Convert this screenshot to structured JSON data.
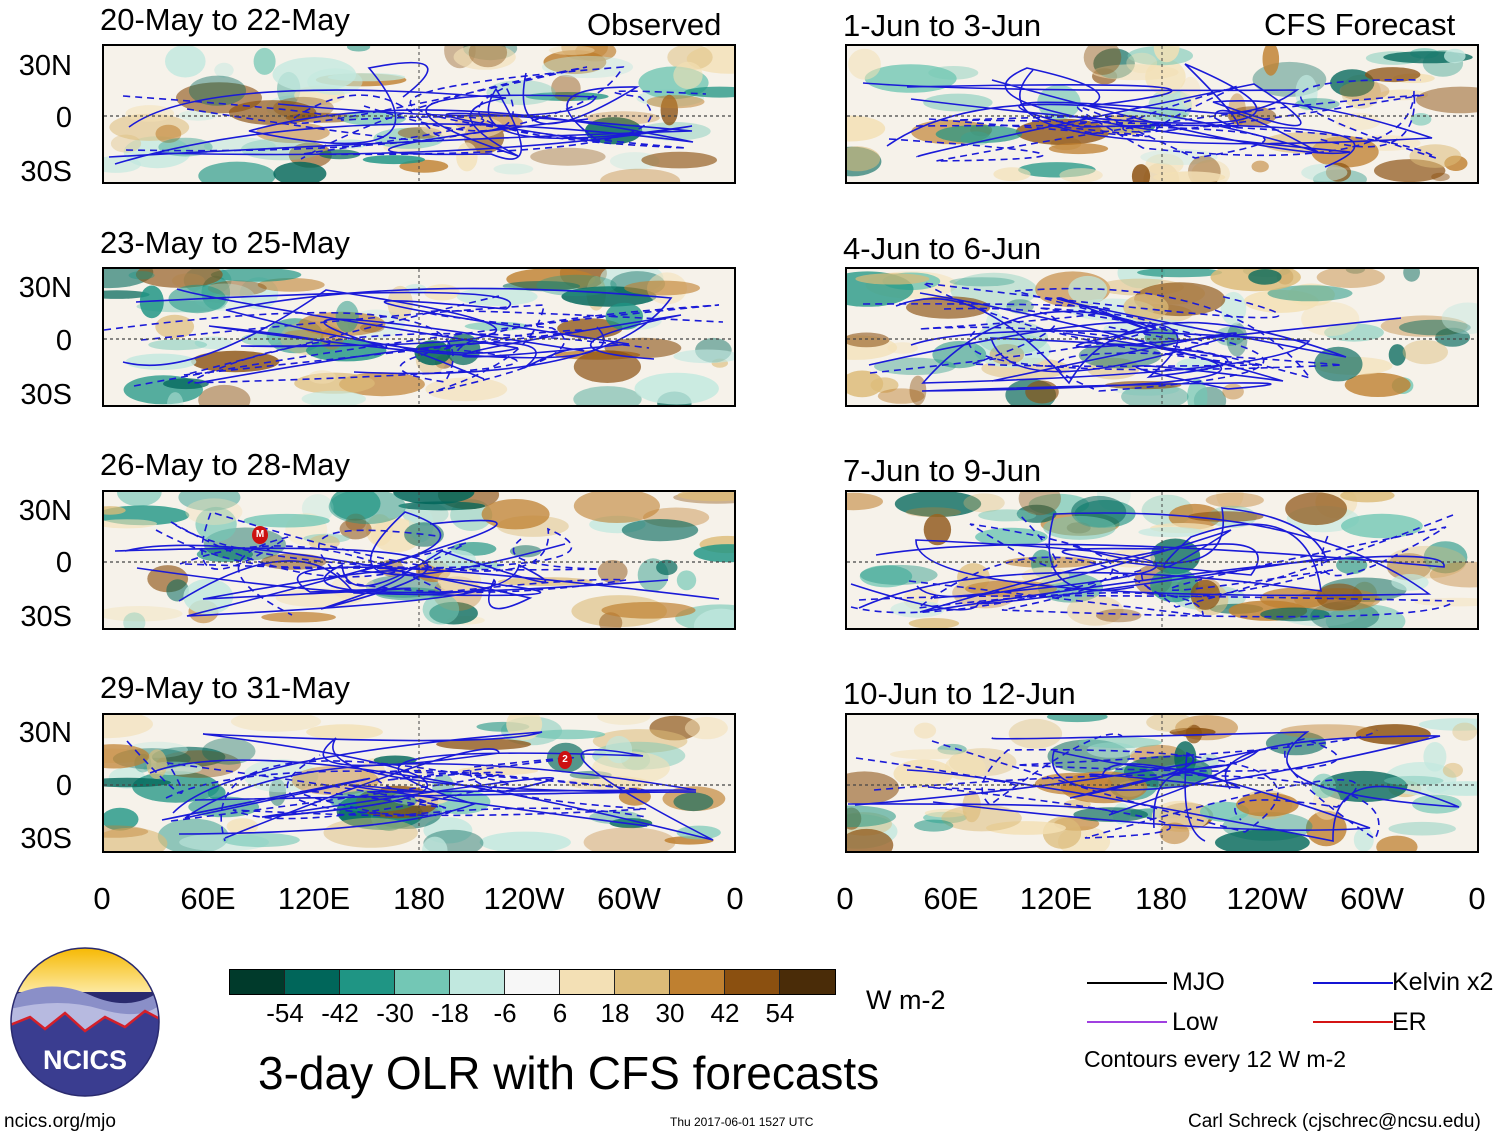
{
  "header": {
    "observed_label": "Observed",
    "forecast_label": "CFS Forecast"
  },
  "panels": {
    "observed": [
      {
        "title": "20-May to 22-May"
      },
      {
        "title": "23-May to 25-May"
      },
      {
        "title": "26-May to 28-May",
        "marker": "M"
      },
      {
        "title": "29-May to 31-May",
        "marker": "2"
      }
    ],
    "forecast": [
      {
        "title": "1-Jun to 3-Jun"
      },
      {
        "title": "4-Jun to 6-Jun"
      },
      {
        "title": "7-Jun to 9-Jun"
      },
      {
        "title": "10-Jun to 12-Jun"
      }
    ]
  },
  "axes": {
    "lat_labels": [
      "30N",
      "0",
      "30S"
    ],
    "lon_labels": [
      "0",
      "60E",
      "120E",
      "180",
      "120W",
      "60W",
      "0"
    ]
  },
  "colorbar": {
    "colors": [
      "#003a2b",
      "#00665a",
      "#1f9584",
      "#73c7b5",
      "#c1e8df",
      "#f7f7f7",
      "#f3e0b5",
      "#dcbb78",
      "#bf8030",
      "#8b5010",
      "#4a2c08"
    ],
    "ticks": [
      "-54",
      "-42",
      "-30",
      "-18",
      "-6",
      "6",
      "18",
      "30",
      "42",
      "54"
    ],
    "unit": "W m-2"
  },
  "title": "3-day OLR with CFS forecasts",
  "legend": {
    "items": [
      {
        "label": "MJO",
        "color": "#000000"
      },
      {
        "label": "Kelvin x2",
        "color": "#1414d4"
      },
      {
        "label": "Low",
        "color": "#a040e0"
      },
      {
        "label": "ER",
        "color": "#d41414"
      }
    ],
    "contour_note": "Contours every 12 W m-2"
  },
  "logo": {
    "text": "NCICS"
  },
  "footer": {
    "url": "ncics.org/mjo",
    "timestamp": "Thu 2017-06-01 1527 UTC",
    "author": "Carl Schreck (cjschrec@ncsu.edu)"
  }
}
